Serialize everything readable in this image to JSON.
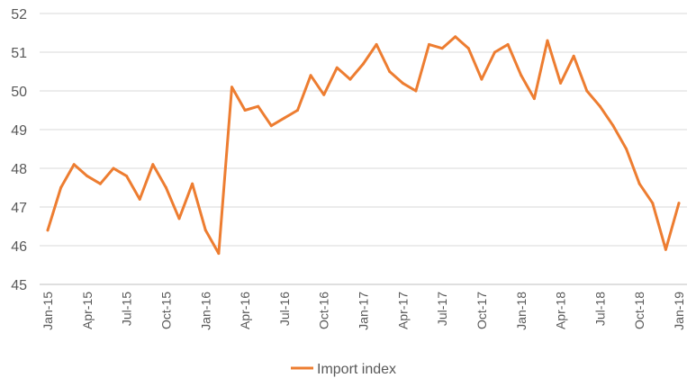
{
  "chart_data": {
    "type": "line",
    "title": "",
    "xlabel": "",
    "ylabel": "",
    "ylim": [
      45,
      52
    ],
    "y_ticks": [
      "45",
      "46",
      "47",
      "48",
      "49",
      "50",
      "51",
      "52"
    ],
    "x_tick_labels": [
      "Jan-15",
      "Apr-15",
      "Jul-15",
      "Oct-15",
      "Jan-16",
      "Apr-16",
      "Jul-16",
      "Oct-16",
      "Jan-17",
      "Apr-17",
      "Jul-17",
      "Oct-17",
      "Jan-18",
      "Apr-18",
      "Jul-18",
      "Oct-18",
      "Jan-19"
    ],
    "grid": "horizontal",
    "legend": "bottom",
    "x": [
      "Jan-15",
      "Feb-15",
      "Mar-15",
      "Apr-15",
      "May-15",
      "Jun-15",
      "Jul-15",
      "Aug-15",
      "Sep-15",
      "Oct-15",
      "Nov-15",
      "Dec-15",
      "Jan-16",
      "Feb-16",
      "Mar-16",
      "Apr-16",
      "May-16",
      "Jun-16",
      "Jul-16",
      "Aug-16",
      "Sep-16",
      "Oct-16",
      "Nov-16",
      "Dec-16",
      "Jan-17",
      "Feb-17",
      "Mar-17",
      "Apr-17",
      "May-17",
      "Jun-17",
      "Jul-17",
      "Aug-17",
      "Sep-17",
      "Oct-17",
      "Nov-17",
      "Dec-17",
      "Jan-18",
      "Feb-18",
      "Mar-18",
      "Apr-18",
      "May-18",
      "Jun-18",
      "Jul-18",
      "Aug-18",
      "Sep-18",
      "Oct-18",
      "Nov-18",
      "Dec-18",
      "Jan-19"
    ],
    "series": [
      {
        "name": "Import index",
        "color": "#ED7D31",
        "values": [
          46.4,
          47.5,
          48.1,
          47.8,
          47.6,
          48.0,
          47.8,
          47.2,
          48.1,
          47.5,
          46.7,
          47.6,
          46.4,
          45.8,
          50.1,
          49.5,
          49.6,
          49.1,
          49.3,
          49.5,
          50.4,
          49.9,
          50.6,
          50.3,
          50.7,
          51.2,
          50.5,
          50.2,
          50.0,
          51.2,
          51.1,
          51.4,
          51.1,
          50.3,
          51.0,
          51.2,
          50.4,
          49.8,
          51.3,
          50.2,
          50.9,
          50.0,
          49.6,
          49.1,
          48.5,
          47.6,
          47.1,
          45.9,
          47.1
        ]
      }
    ]
  }
}
